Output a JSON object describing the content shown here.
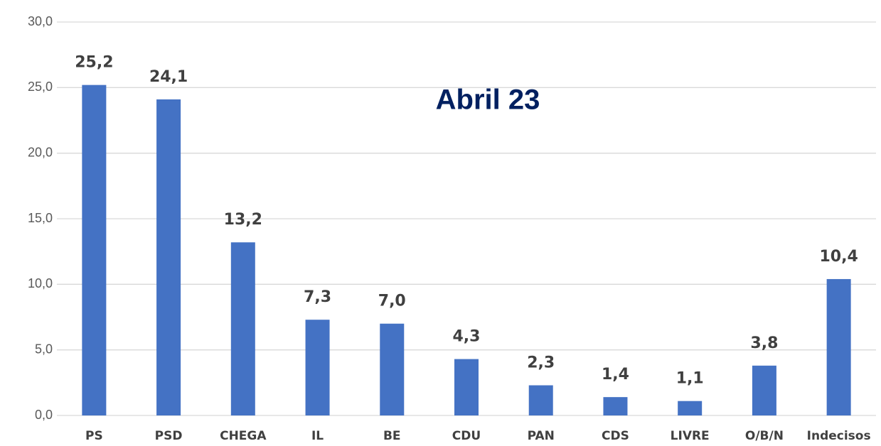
{
  "chart_data": {
    "type": "bar",
    "title": "Abril 23",
    "categories": [
      "PS",
      "PSD",
      "CHEGA",
      "IL",
      "BE",
      "CDU",
      "PAN",
      "CDS",
      "LIVRE",
      "O/B/N",
      "Indecisos"
    ],
    "values": [
      25.2,
      24.1,
      13.2,
      7.3,
      7.0,
      4.3,
      2.3,
      1.4,
      1.1,
      3.8,
      10.4
    ],
    "value_labels": [
      "25,2",
      "24,1",
      "13,2",
      "7,3",
      "7,0",
      "4,3",
      "2,3",
      "1,4",
      "1,1",
      "3,8",
      "10,4"
    ],
    "color": "#4472c4",
    "ylim": [
      0,
      30
    ],
    "yticks": [
      {
        "value": 0,
        "label": "0,0"
      },
      {
        "value": 5,
        "label": "5,0"
      },
      {
        "value": 10,
        "label": "10,0"
      },
      {
        "value": 15,
        "label": "15,0"
      },
      {
        "value": 20,
        "label": "20,0"
      },
      {
        "value": 25,
        "label": "25,0"
      },
      {
        "value": 30,
        "label": "30,0"
      }
    ],
    "grid": true
  }
}
